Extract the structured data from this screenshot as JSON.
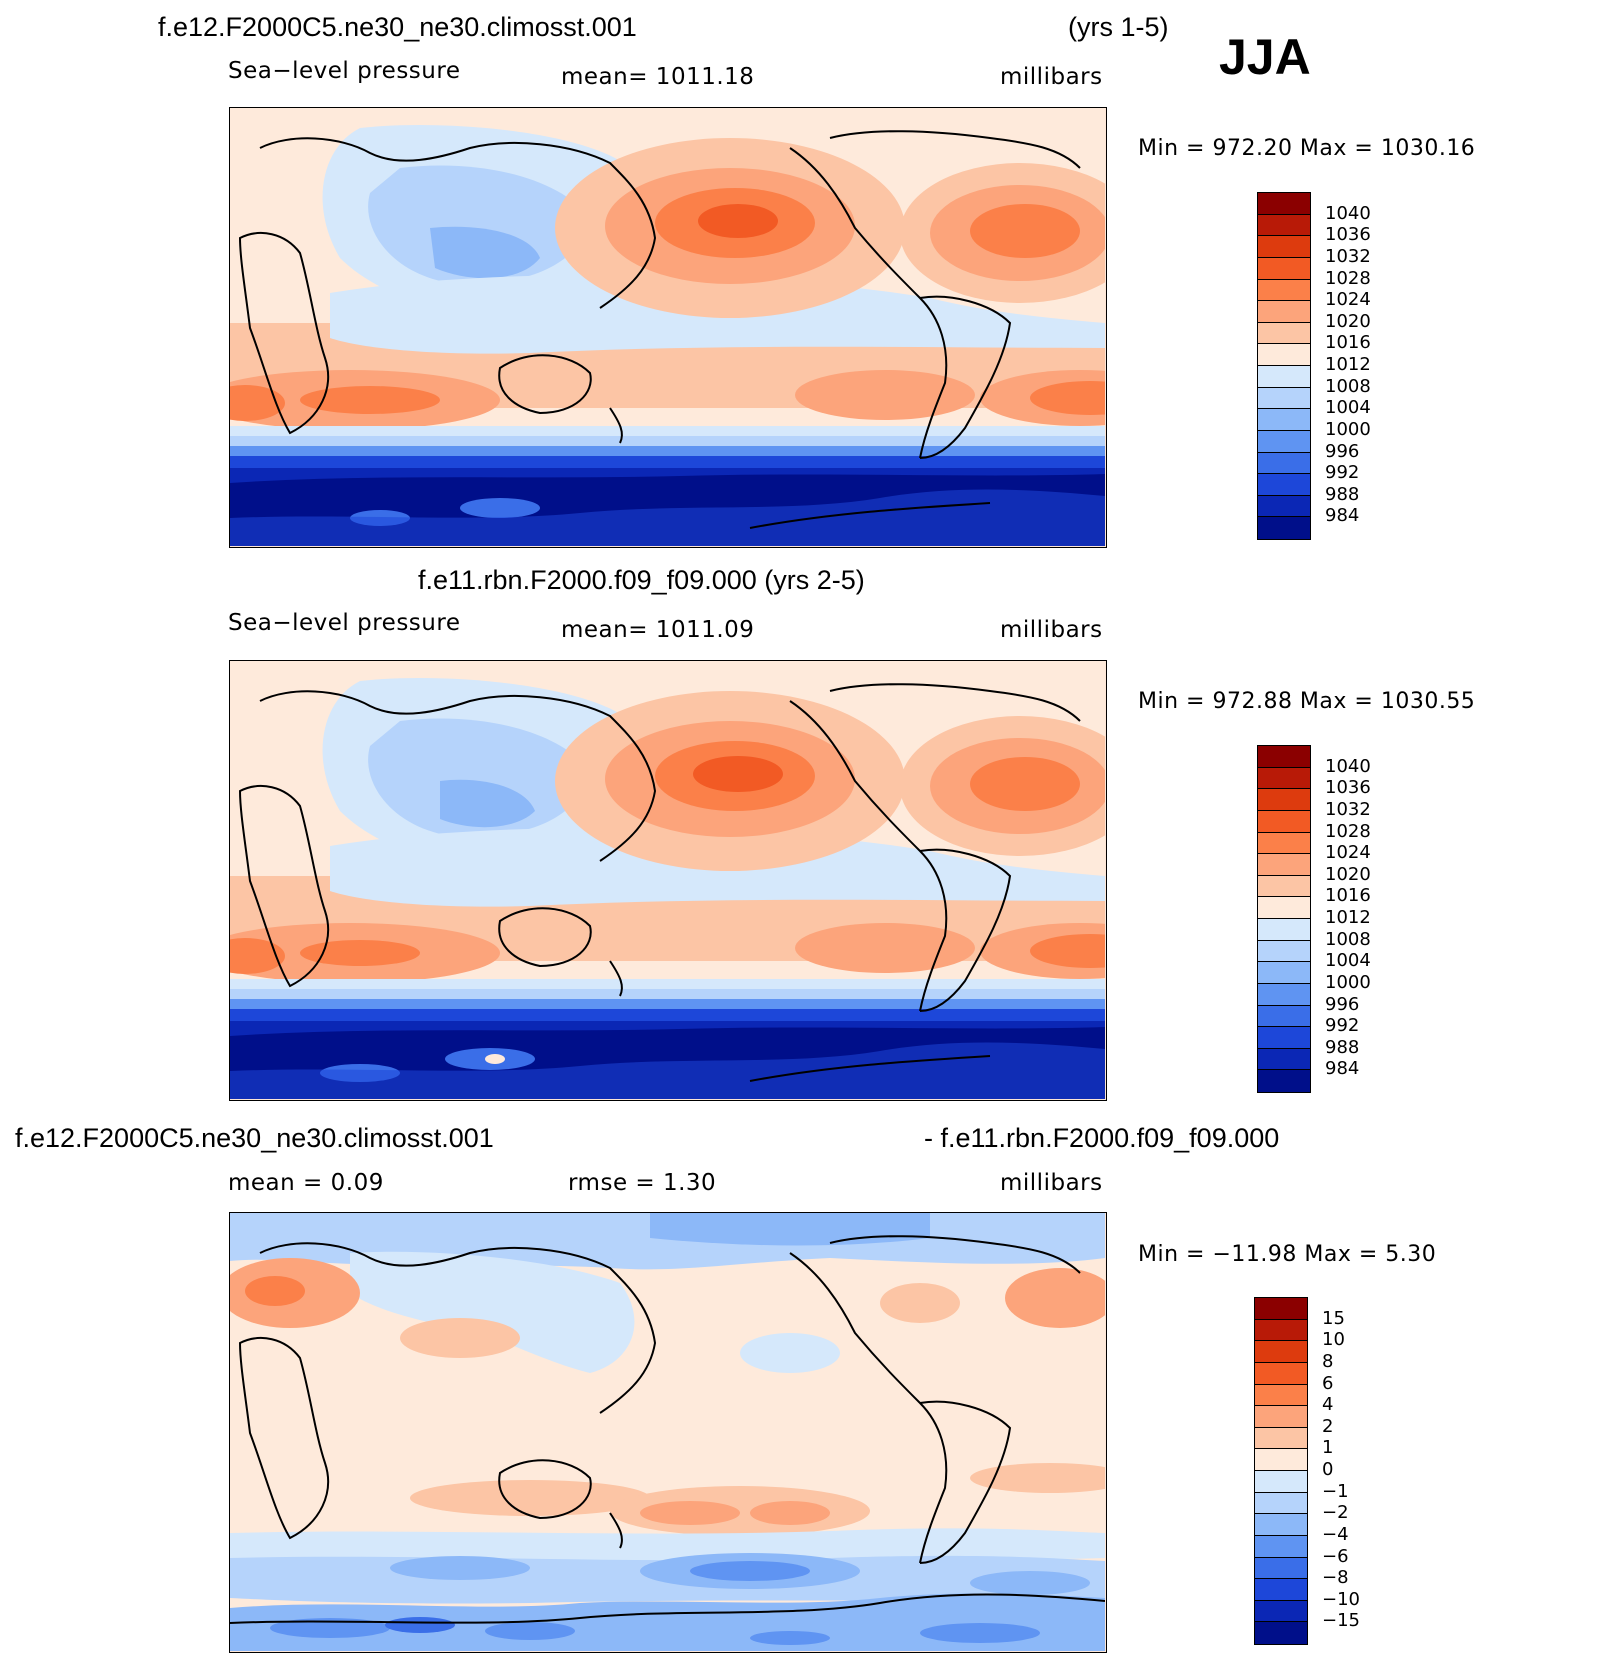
{
  "season": "JJA",
  "panels": [
    {
      "title_left": "f.e12.F2000C5.ne30_ne30.climosst.001",
      "title_right": "(yrs 1-5)",
      "sub_left": "Sea−level  pressure",
      "sub_center": "mean=  1011.18",
      "sub_right": "millibars",
      "minmax": "Min  =  972.20  Max  =  1030.16",
      "kind": "abs"
    },
    {
      "title_left": "f.e11.rbn.F2000.f09_f09.000 (yrs 2-5)",
      "sub_left": "Sea−level  pressure",
      "sub_center": "mean=  1011.09",
      "sub_right": "millibars",
      "minmax": "Min  =  972.88  Max  =  1030.55",
      "kind": "abs"
    },
    {
      "title_left": "f.e12.F2000C5.ne30_ne30.climosst.001",
      "title_right": "- f.e11.rbn.F2000.f09_f09.000",
      "sub_left": "mean  =     0.09",
      "sub_center": "rmse  =     1.30",
      "sub_right": "millibars",
      "minmax": "Min  =  −11.98  Max  =      5.30",
      "kind": "diff"
    }
  ],
  "colorbar_abs": {
    "labels": [
      "1040",
      "1036",
      "1032",
      "1028",
      "1024",
      "1020",
      "1016",
      "1012",
      "1008",
      "1004",
      "1000",
      "996",
      "992",
      "988",
      "984"
    ],
    "colors": [
      "#8b0000",
      "#b81a07",
      "#dd3b0e",
      "#f25a24",
      "#fb8049",
      "#fca47b",
      "#fcc5a5",
      "#feeadb",
      "#d5e8fb",
      "#b5d3fb",
      "#8cb8f8",
      "#5f94f2",
      "#3a6ee8",
      "#1d47d9",
      "#0b27b5",
      "#000f8a"
    ]
  },
  "colorbar_diff": {
    "labels": [
      "15",
      "10",
      "8",
      "6",
      "4",
      "2",
      "1",
      "0",
      "−1",
      "−2",
      "−4",
      "−6",
      "−8",
      "−10",
      "−15"
    ],
    "colors": [
      "#8b0000",
      "#b81a07",
      "#dd3b0e",
      "#f25a24",
      "#fb8049",
      "#fca47b",
      "#fcc5a5",
      "#feeadb",
      "#d5e8fb",
      "#b5d3fb",
      "#8cb8f8",
      "#5f94f2",
      "#3a6ee8",
      "#1d47d9",
      "#0b27b5",
      "#000f8a"
    ]
  }
}
